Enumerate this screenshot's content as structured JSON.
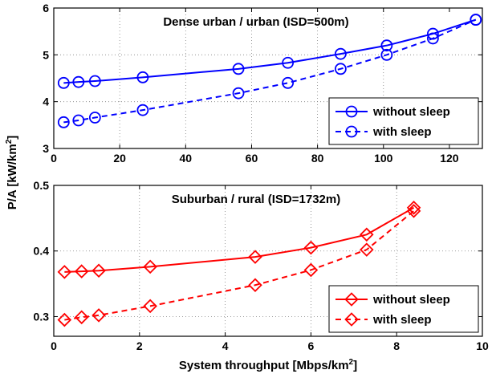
{
  "chart_data": [
    {
      "type": "line",
      "title": "Dense urban / urban (ISD=500m)",
      "xlim": [
        0,
        130
      ],
      "ylim": [
        3,
        6
      ],
      "xticks": [
        0,
        20,
        40,
        60,
        80,
        100,
        120
      ],
      "yticks": [
        3,
        4,
        5,
        6
      ],
      "grid": true,
      "legend_position": "bottom-right",
      "color": "#0000ff",
      "marker": "circle",
      "series": [
        {
          "name": "without sleep",
          "style": "solid",
          "x": [
            3,
            7.5,
            12.5,
            27,
            56,
            71,
            87,
            101,
            115,
            128
          ],
          "y": [
            4.4,
            4.42,
            4.44,
            4.52,
            4.7,
            4.83,
            5.02,
            5.2,
            5.45,
            5.75
          ]
        },
        {
          "name": "with sleep",
          "style": "dashed",
          "x": [
            3,
            7.5,
            12.5,
            27,
            56,
            71,
            87,
            101,
            115,
            128
          ],
          "y": [
            3.56,
            3.6,
            3.66,
            3.82,
            4.18,
            4.4,
            4.7,
            5.0,
            5.35,
            5.75
          ]
        }
      ]
    },
    {
      "type": "line",
      "title": "Suburban / rural (ISD=1732m)",
      "xlabel": "System throughput [Mbps/km²]",
      "xlim": [
        0,
        10
      ],
      "ylim": [
        0.27,
        0.5
      ],
      "xticks": [
        0,
        2,
        4,
        6,
        8,
        10
      ],
      "yticks": [
        0.3,
        0.4,
        0.5
      ],
      "grid": true,
      "legend_position": "bottom-right",
      "color": "#ff0000",
      "marker": "diamond",
      "series": [
        {
          "name": "without sleep",
          "style": "solid",
          "x": [
            0.25,
            0.65,
            1.05,
            2.25,
            4.7,
            6.0,
            7.3,
            8.4
          ],
          "y": [
            0.368,
            0.369,
            0.37,
            0.376,
            0.391,
            0.405,
            0.425,
            0.466
          ]
        },
        {
          "name": "with sleep",
          "style": "dashed",
          "x": [
            0.25,
            0.65,
            1.05,
            2.25,
            4.7,
            6.0,
            7.3,
            8.4
          ],
          "y": [
            0.295,
            0.299,
            0.302,
            0.316,
            0.348,
            0.371,
            0.402,
            0.461
          ]
        }
      ]
    }
  ],
  "shared_ylabel": "P/A [kW/km²]"
}
